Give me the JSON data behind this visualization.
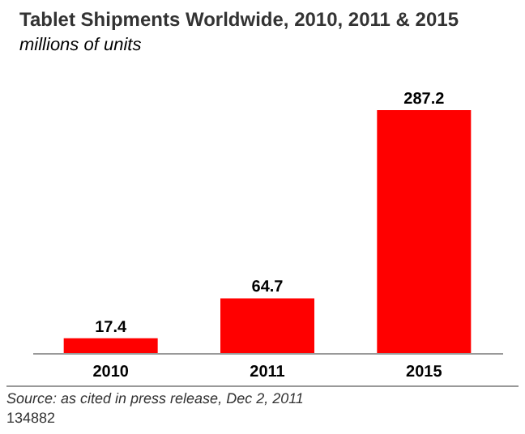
{
  "chart_data": {
    "type": "bar",
    "title": "Tablet Shipments Worldwide, 2010, 2011 & 2015",
    "subtitle": "millions of units",
    "categories": [
      "2010",
      "2011",
      "2015"
    ],
    "values": [
      17.4,
      64.7,
      287.2
    ],
    "color": "#ff0000",
    "data_labels": true,
    "annotations": [
      "Source: as cited in press release, Dec 2, 2011",
      "134882"
    ]
  }
}
